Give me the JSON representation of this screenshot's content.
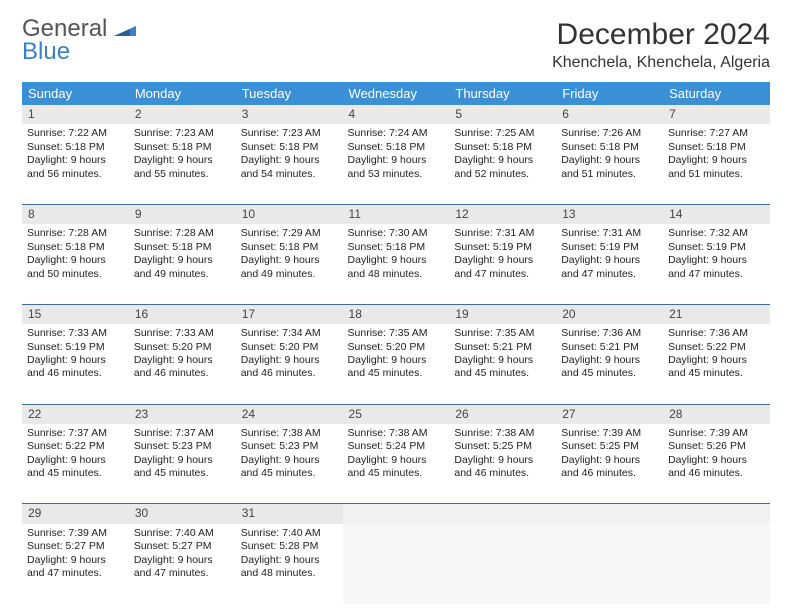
{
  "logo": {
    "line1": "General",
    "line2": "Blue"
  },
  "header": {
    "title": "December 2024",
    "location": "Khenchela, Khenchela, Algeria"
  },
  "colors": {
    "header_bg": "#3b8fd4",
    "header_text": "#ffffff",
    "daynum_bg": "#e9e9e9",
    "rule": "#3b6fa4",
    "logo_blue": "#3b7fc4"
  },
  "day_names": [
    "Sunday",
    "Monday",
    "Tuesday",
    "Wednesday",
    "Thursday",
    "Friday",
    "Saturday"
  ],
  "weeks": [
    [
      {
        "n": "1",
        "sunrise": "Sunrise: 7:22 AM",
        "sunset": "Sunset: 5:18 PM",
        "day1": "Daylight: 9 hours",
        "day2": "and 56 minutes."
      },
      {
        "n": "2",
        "sunrise": "Sunrise: 7:23 AM",
        "sunset": "Sunset: 5:18 PM",
        "day1": "Daylight: 9 hours",
        "day2": "and 55 minutes."
      },
      {
        "n": "3",
        "sunrise": "Sunrise: 7:23 AM",
        "sunset": "Sunset: 5:18 PM",
        "day1": "Daylight: 9 hours",
        "day2": "and 54 minutes."
      },
      {
        "n": "4",
        "sunrise": "Sunrise: 7:24 AM",
        "sunset": "Sunset: 5:18 PM",
        "day1": "Daylight: 9 hours",
        "day2": "and 53 minutes."
      },
      {
        "n": "5",
        "sunrise": "Sunrise: 7:25 AM",
        "sunset": "Sunset: 5:18 PM",
        "day1": "Daylight: 9 hours",
        "day2": "and 52 minutes."
      },
      {
        "n": "6",
        "sunrise": "Sunrise: 7:26 AM",
        "sunset": "Sunset: 5:18 PM",
        "day1": "Daylight: 9 hours",
        "day2": "and 51 minutes."
      },
      {
        "n": "7",
        "sunrise": "Sunrise: 7:27 AM",
        "sunset": "Sunset: 5:18 PM",
        "day1": "Daylight: 9 hours",
        "day2": "and 51 minutes."
      }
    ],
    [
      {
        "n": "8",
        "sunrise": "Sunrise: 7:28 AM",
        "sunset": "Sunset: 5:18 PM",
        "day1": "Daylight: 9 hours",
        "day2": "and 50 minutes."
      },
      {
        "n": "9",
        "sunrise": "Sunrise: 7:28 AM",
        "sunset": "Sunset: 5:18 PM",
        "day1": "Daylight: 9 hours",
        "day2": "and 49 minutes."
      },
      {
        "n": "10",
        "sunrise": "Sunrise: 7:29 AM",
        "sunset": "Sunset: 5:18 PM",
        "day1": "Daylight: 9 hours",
        "day2": "and 49 minutes."
      },
      {
        "n": "11",
        "sunrise": "Sunrise: 7:30 AM",
        "sunset": "Sunset: 5:18 PM",
        "day1": "Daylight: 9 hours",
        "day2": "and 48 minutes."
      },
      {
        "n": "12",
        "sunrise": "Sunrise: 7:31 AM",
        "sunset": "Sunset: 5:19 PM",
        "day1": "Daylight: 9 hours",
        "day2": "and 47 minutes."
      },
      {
        "n": "13",
        "sunrise": "Sunrise: 7:31 AM",
        "sunset": "Sunset: 5:19 PM",
        "day1": "Daylight: 9 hours",
        "day2": "and 47 minutes."
      },
      {
        "n": "14",
        "sunrise": "Sunrise: 7:32 AM",
        "sunset": "Sunset: 5:19 PM",
        "day1": "Daylight: 9 hours",
        "day2": "and 47 minutes."
      }
    ],
    [
      {
        "n": "15",
        "sunrise": "Sunrise: 7:33 AM",
        "sunset": "Sunset: 5:19 PM",
        "day1": "Daylight: 9 hours",
        "day2": "and 46 minutes."
      },
      {
        "n": "16",
        "sunrise": "Sunrise: 7:33 AM",
        "sunset": "Sunset: 5:20 PM",
        "day1": "Daylight: 9 hours",
        "day2": "and 46 minutes."
      },
      {
        "n": "17",
        "sunrise": "Sunrise: 7:34 AM",
        "sunset": "Sunset: 5:20 PM",
        "day1": "Daylight: 9 hours",
        "day2": "and 46 minutes."
      },
      {
        "n": "18",
        "sunrise": "Sunrise: 7:35 AM",
        "sunset": "Sunset: 5:20 PM",
        "day1": "Daylight: 9 hours",
        "day2": "and 45 minutes."
      },
      {
        "n": "19",
        "sunrise": "Sunrise: 7:35 AM",
        "sunset": "Sunset: 5:21 PM",
        "day1": "Daylight: 9 hours",
        "day2": "and 45 minutes."
      },
      {
        "n": "20",
        "sunrise": "Sunrise: 7:36 AM",
        "sunset": "Sunset: 5:21 PM",
        "day1": "Daylight: 9 hours",
        "day2": "and 45 minutes."
      },
      {
        "n": "21",
        "sunrise": "Sunrise: 7:36 AM",
        "sunset": "Sunset: 5:22 PM",
        "day1": "Daylight: 9 hours",
        "day2": "and 45 minutes."
      }
    ],
    [
      {
        "n": "22",
        "sunrise": "Sunrise: 7:37 AM",
        "sunset": "Sunset: 5:22 PM",
        "day1": "Daylight: 9 hours",
        "day2": "and 45 minutes."
      },
      {
        "n": "23",
        "sunrise": "Sunrise: 7:37 AM",
        "sunset": "Sunset: 5:23 PM",
        "day1": "Daylight: 9 hours",
        "day2": "and 45 minutes."
      },
      {
        "n": "24",
        "sunrise": "Sunrise: 7:38 AM",
        "sunset": "Sunset: 5:23 PM",
        "day1": "Daylight: 9 hours",
        "day2": "and 45 minutes."
      },
      {
        "n": "25",
        "sunrise": "Sunrise: 7:38 AM",
        "sunset": "Sunset: 5:24 PM",
        "day1": "Daylight: 9 hours",
        "day2": "and 45 minutes."
      },
      {
        "n": "26",
        "sunrise": "Sunrise: 7:38 AM",
        "sunset": "Sunset: 5:25 PM",
        "day1": "Daylight: 9 hours",
        "day2": "and 46 minutes."
      },
      {
        "n": "27",
        "sunrise": "Sunrise: 7:39 AM",
        "sunset": "Sunset: 5:25 PM",
        "day1": "Daylight: 9 hours",
        "day2": "and 46 minutes."
      },
      {
        "n": "28",
        "sunrise": "Sunrise: 7:39 AM",
        "sunset": "Sunset: 5:26 PM",
        "day1": "Daylight: 9 hours",
        "day2": "and 46 minutes."
      }
    ],
    [
      {
        "n": "29",
        "sunrise": "Sunrise: 7:39 AM",
        "sunset": "Sunset: 5:27 PM",
        "day1": "Daylight: 9 hours",
        "day2": "and 47 minutes."
      },
      {
        "n": "30",
        "sunrise": "Sunrise: 7:40 AM",
        "sunset": "Sunset: 5:27 PM",
        "day1": "Daylight: 9 hours",
        "day2": "and 47 minutes."
      },
      {
        "n": "31",
        "sunrise": "Sunrise: 7:40 AM",
        "sunset": "Sunset: 5:28 PM",
        "day1": "Daylight: 9 hours",
        "day2": "and 48 minutes."
      },
      null,
      null,
      null,
      null
    ]
  ]
}
